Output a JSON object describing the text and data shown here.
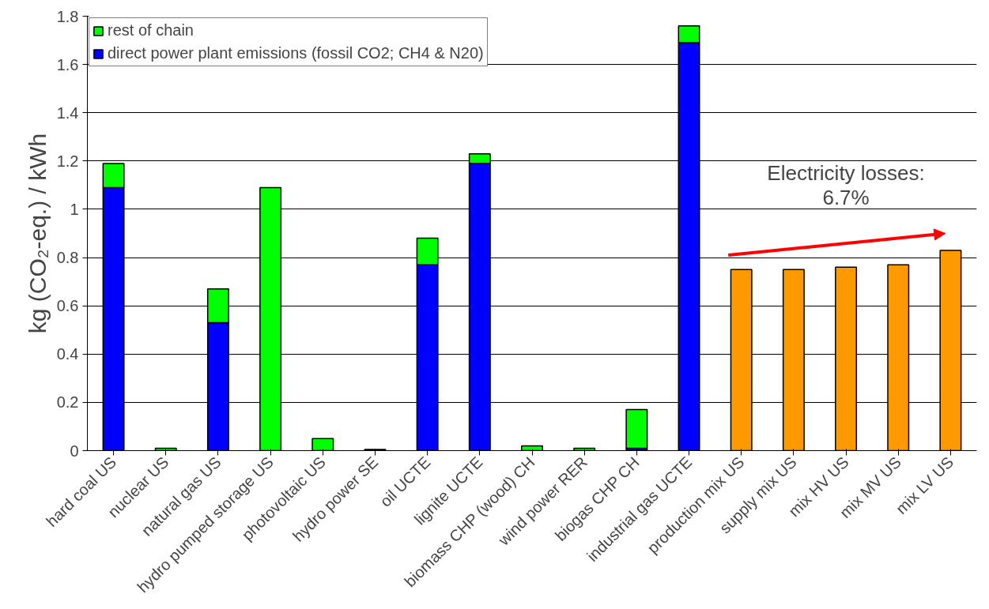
{
  "chart_data": {
    "type": "bar",
    "stacked": true,
    "ylabel": "kg (CO₂-eq.) / kWh",
    "categories": [
      "hard coal US",
      "nuclear US",
      "natural gas US",
      "hydro pumped storage US",
      "photovoltaic US",
      "hydro power SE",
      "oil UCTE",
      "lignite UCTE",
      "biomass CHP (wood) CH",
      "wind power RER",
      "biogas CHP CH",
      "industrial gas UCTE",
      "production mix US",
      "supply mix US",
      "mix HV US",
      "mix MV US",
      "mix LV US"
    ],
    "series": [
      {
        "name": "direct power plant emissions (fossil CO2; CH4 & N20)",
        "color": "#0000ff",
        "values": [
          1.09,
          null,
          0.53,
          null,
          null,
          null,
          0.77,
          1.19,
          null,
          null,
          0.01,
          1.69,
          null,
          null,
          null,
          null,
          null
        ]
      },
      {
        "name": "rest of chain",
        "color": "#00ff00",
        "values": [
          0.1,
          0.01,
          0.14,
          1.09,
          0.05,
          0.005,
          0.11,
          0.04,
          0.02,
          0.01,
          0.16,
          0.07,
          null,
          null,
          null,
          null,
          null
        ]
      },
      {
        "color": "#ff9900",
        "values": [
          null,
          null,
          null,
          null,
          null,
          null,
          null,
          null,
          null,
          null,
          null,
          null,
          0.75,
          0.75,
          0.76,
          0.77,
          0.83
        ]
      }
    ],
    "ylim": [
      0,
      1.8
    ],
    "yticks": [
      0,
      {
        "value": 0.2,
        "label": "0.2"
      },
      {
        "value": 0.4,
        "label": "0.4"
      },
      {
        "value": 0.6,
        "label": "0.6"
      },
      {
        "value": 0.8,
        "label": "0.8"
      },
      1,
      {
        "value": 1.2,
        "label": "1.2"
      },
      {
        "value": 1.4,
        "label": "1.4"
      },
      {
        "value": 1.6,
        "label": "1.6"
      },
      {
        "value": 1.8,
        "label": "1.8"
      }
    ],
    "grid": "y",
    "legend": "top left",
    "annotations": [
      "Electricity losses:\n6.7%"
    ]
  }
}
